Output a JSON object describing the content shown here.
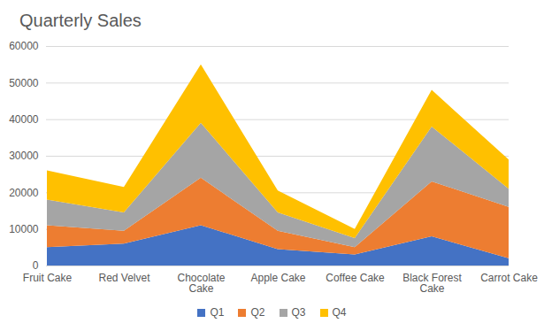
{
  "chart_data": {
    "type": "area",
    "title": "Quarterly Sales",
    "categories": [
      "Fruit Cake",
      "Red Velvet",
      "Chocolate Cake",
      "Apple Cake",
      "Coffee Cake",
      "Black Forest Cake",
      "Carrot Cake"
    ],
    "series": [
      {
        "name": "Q1",
        "color": "#4472c4",
        "values": [
          5000,
          6000,
          11000,
          4500,
          3000,
          8000,
          2000
        ]
      },
      {
        "name": "Q2",
        "color": "#ed7d31",
        "values": [
          6000,
          3500,
          13000,
          5000,
          2000,
          15000,
          14000
        ]
      },
      {
        "name": "Q3",
        "color": "#a5a5a5",
        "values": [
          7000,
          5000,
          15000,
          5000,
          2500,
          15000,
          5000
        ]
      },
      {
        "name": "Q4",
        "color": "#ffc000",
        "values": [
          8000,
          7000,
          16000,
          6000,
          2500,
          10000,
          8000
        ]
      }
    ],
    "ylim": [
      0,
      60000
    ],
    "yticks": [
      0,
      10000,
      20000,
      30000,
      40000,
      50000,
      60000
    ],
    "grid": true,
    "stacked": true,
    "legend": "bottom"
  }
}
